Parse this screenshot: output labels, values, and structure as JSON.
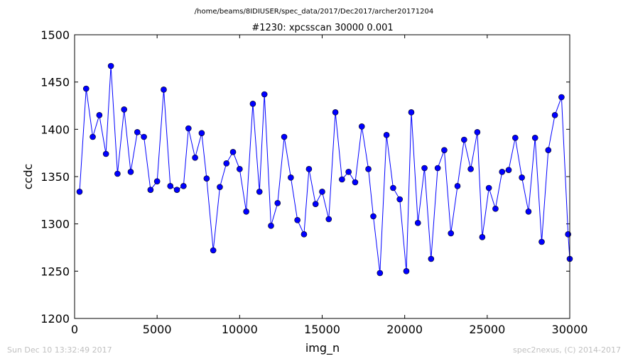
{
  "stamps": {
    "left": "Sun Dec 10 13:32:49 2017",
    "right": "spec2nexus, (C) 2014-2017"
  },
  "chart_data": {
    "type": "line",
    "suptitle": "/home/beams/8IDIUSER/spec_data/2017/Dec2017/archer20171204",
    "title": "#1230: xpcsscan 30000 0.001",
    "xlabel": "img_n",
    "ylabel": "ccdc",
    "xlim": [
      0,
      30000
    ],
    "ylim": [
      1200,
      1500
    ],
    "xticks": [
      0,
      5000,
      10000,
      15000,
      20000,
      25000,
      30000
    ],
    "yticks": [
      1200,
      1250,
      1300,
      1350,
      1400,
      1450,
      1500
    ],
    "grid": false,
    "line_color": "#0000ff",
    "marker_color": "#0000ff",
    "marker": "circle",
    "series": [
      {
        "x": [
          300,
          700,
          1100,
          1500,
          1900,
          2200,
          2600,
          3000,
          3400,
          3800,
          4200,
          4600,
          5000,
          5400,
          5800,
          6200,
          6600,
          6900,
          7300,
          7700,
          8000,
          8400,
          8800,
          9200,
          9600,
          10000,
          10400,
          10800,
          11200,
          11500,
          11900,
          12300,
          12700,
          13100,
          13500,
          13900,
          14200,
          14600,
          15000,
          15400,
          15800,
          16200,
          16600,
          17000,
          17400,
          17800,
          18100,
          18500,
          18900,
          19300,
          19700,
          20100,
          20400,
          20800,
          21200,
          21600,
          22000,
          22400,
          22800,
          23200,
          23600,
          24000,
          24400,
          24700,
          25100,
          25500,
          25900,
          26300,
          26700,
          27100,
          27500,
          27900,
          28300,
          28700,
          29100,
          29500,
          29900,
          30000
        ],
        "y": [
          1334,
          1443,
          1392,
          1415,
          1374,
          1467,
          1353,
          1421,
          1355,
          1397,
          1392,
          1336,
          1345,
          1442,
          1340,
          1336,
          1340,
          1401,
          1370,
          1396,
          1348,
          1272,
          1339,
          1364,
          1376,
          1358,
          1313,
          1427,
          1334,
          1437,
          1298,
          1322,
          1392,
          1349,
          1304,
          1289,
          1358,
          1321,
          1334,
          1305,
          1418,
          1347,
          1355,
          1344,
          1403,
          1358,
          1308,
          1248,
          1394,
          1338,
          1326,
          1250,
          1418,
          1301,
          1359,
          1263,
          1359,
          1378,
          1290,
          1340,
          1389,
          1358,
          1397,
          1286,
          1338,
          1316,
          1355,
          1357,
          1391,
          1349,
          1313,
          1391,
          1281,
          1378,
          1415,
          1434,
          1289,
          1263
        ]
      }
    ]
  }
}
